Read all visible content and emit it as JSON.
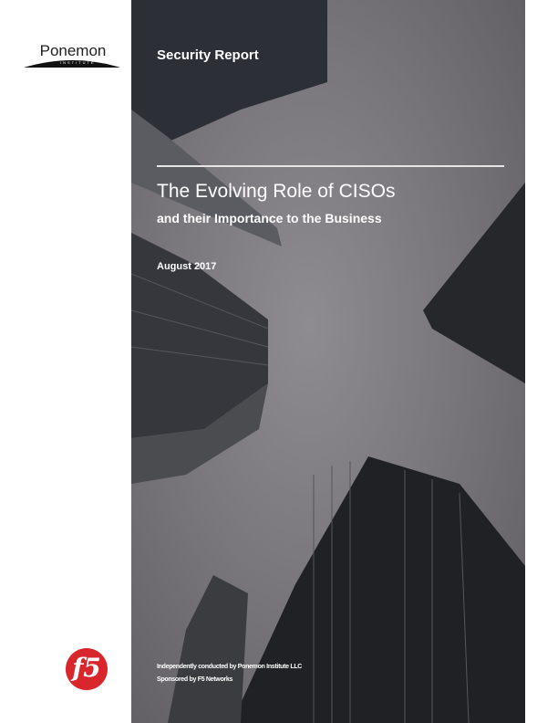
{
  "logo": {
    "name": "Ponemon",
    "sub": "INSTITUTE"
  },
  "header": {
    "label": "Security Report"
  },
  "title": "The Evolving Role of CISOs",
  "subtitle": "and their Importance to the Business",
  "date": "August 2017",
  "footer": {
    "conducted": "Independently conducted by Ponemon Institute LLC",
    "sponsor": "Sponsored by F5 Networks"
  },
  "sponsor_logo": {
    "text": "f5",
    "color": "#d9262c"
  }
}
